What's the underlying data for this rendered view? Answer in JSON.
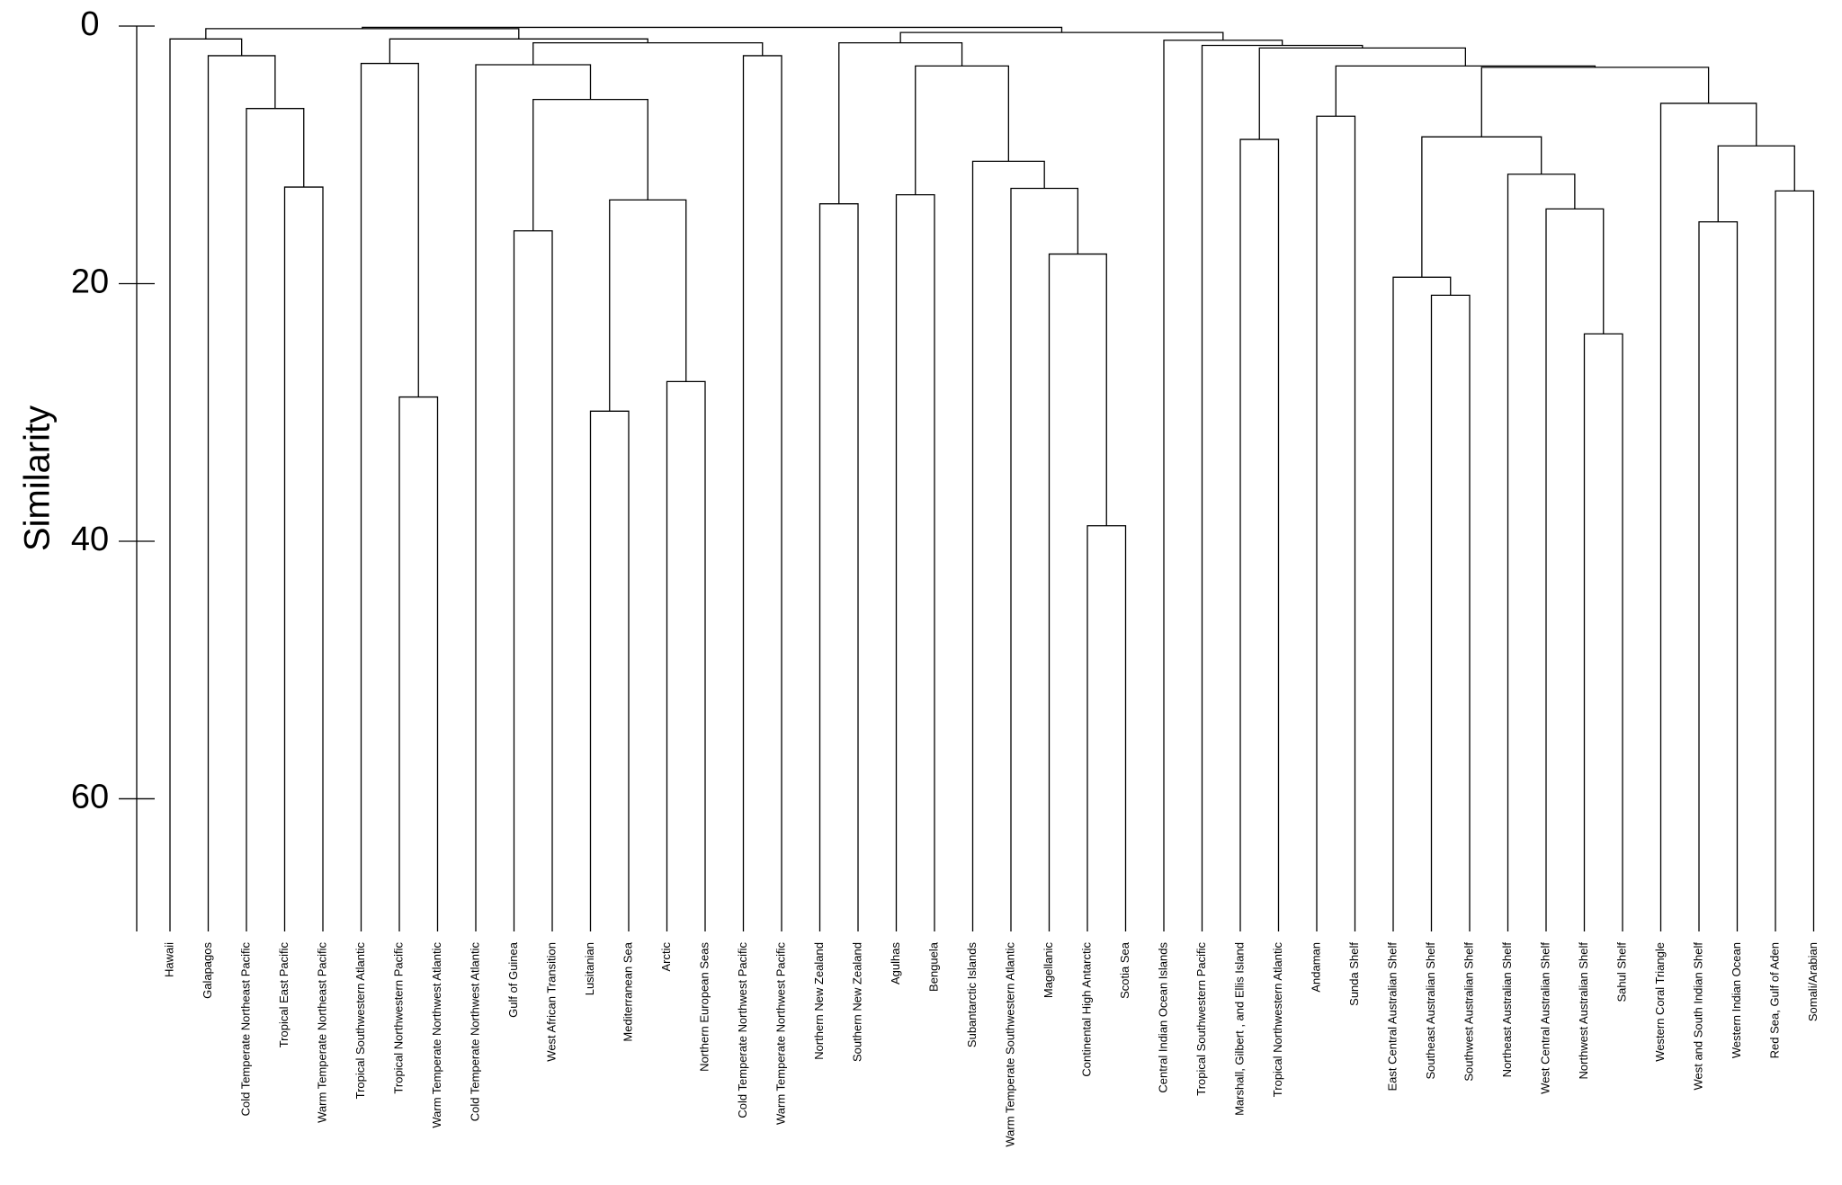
{
  "chart_data": {
    "type": "dendrogram",
    "y_label": "Similarity",
    "ylim": [
      0,
      70.3
    ],
    "yticks": [
      0,
      20,
      40,
      60
    ],
    "color": "#000000",
    "leaves": [
      "Hawaii",
      "Galapagos",
      "Cold Temperate Northeast Pacific",
      "Tropical East Pacific",
      "Warm Temperate Northeast Pacific",
      "Tropical Southwestern Atlantic",
      "Tropical Northwestern Pacific",
      "Warm Temperate Northwest Atlantic",
      "Cold Temperate Northwest Atlantic",
      "Gulf of Guinea",
      "West African Transition",
      "Lusitanian",
      "Mediterranean Sea",
      "Arctic",
      "Northern European Seas",
      "Cold Temperate Northwest Pacific",
      "Warm Temperate Northwest Pacific",
      "Northern New Zealand",
      "Southern New Zealand",
      "Agulhas",
      "Benguela",
      "Subantarctic Islands",
      "Warm Temperate Southwestern Atlantic",
      "Magellanic",
      "Continental High Antarctic",
      "Scotia Sea",
      "Central Indian Ocean Islands",
      "Tropical Southwestern Pacific",
      "Marshall, Gilbert , and Ellis Island",
      "Tropical Northwestern Atlantic",
      "Andaman",
      "Sunda Shelf",
      "East Central Australian Shelf",
      "Southeast Australian Shelf",
      "Southwest Australian Shelf",
      "Northeast Australian Shelf",
      "West Central Australian Shelf",
      "Northwest Australian Shelf",
      "Sahul Shelf",
      "Western Coral Triangle",
      "West and South Indian Shelf",
      "Western Indian Ocean",
      "Red Sea, Gulf of Aden",
      "Somali/Arabian"
    ],
    "merges": [
      [
        3,
        4,
        12.5
      ],
      [
        2,
        44,
        6.4
      ],
      [
        1,
        45,
        2.3
      ],
      [
        0,
        46,
        1.0
      ],
      [
        6,
        7,
        28.8
      ],
      [
        5,
        48,
        2.9
      ],
      [
        9,
        10,
        15.9
      ],
      [
        11,
        12,
        29.9
      ],
      [
        13,
        14,
        27.6
      ],
      [
        51,
        52,
        13.5
      ],
      [
        50,
        53,
        5.7
      ],
      [
        8,
        54,
        3.0
      ],
      [
        15,
        16,
        2.3
      ],
      [
        55,
        56,
        1.3
      ],
      [
        49,
        57,
        1.0
      ],
      [
        47,
        58,
        0.2
      ],
      [
        17,
        18,
        13.8
      ],
      [
        19,
        20,
        13.1
      ],
      [
        24,
        25,
        38.8
      ],
      [
        23,
        62,
        17.7
      ],
      [
        22,
        63,
        12.6
      ],
      [
        21,
        64,
        10.5
      ],
      [
        61,
        65,
        3.1
      ],
      [
        60,
        66,
        1.3
      ],
      [
        28,
        29,
        8.8
      ],
      [
        30,
        31,
        7.0
      ],
      [
        33,
        34,
        20.9
      ],
      [
        32,
        70,
        19.5
      ],
      [
        37,
        38,
        23.9
      ],
      [
        36,
        72,
        14.2
      ],
      [
        35,
        73,
        11.5
      ],
      [
        71,
        74,
        8.6
      ],
      [
        40,
        41,
        15.2
      ],
      [
        42,
        43,
        12.8
      ],
      [
        76,
        77,
        9.3
      ],
      [
        39,
        78,
        6.0
      ],
      [
        75,
        79,
        3.2
      ],
      [
        69,
        80,
        3.1
      ],
      [
        68,
        81,
        1.7
      ],
      [
        27,
        82,
        1.5
      ],
      [
        26,
        83,
        1.1
      ],
      [
        67,
        84,
        0.5
      ],
      [
        59,
        85,
        0.1
      ]
    ]
  }
}
